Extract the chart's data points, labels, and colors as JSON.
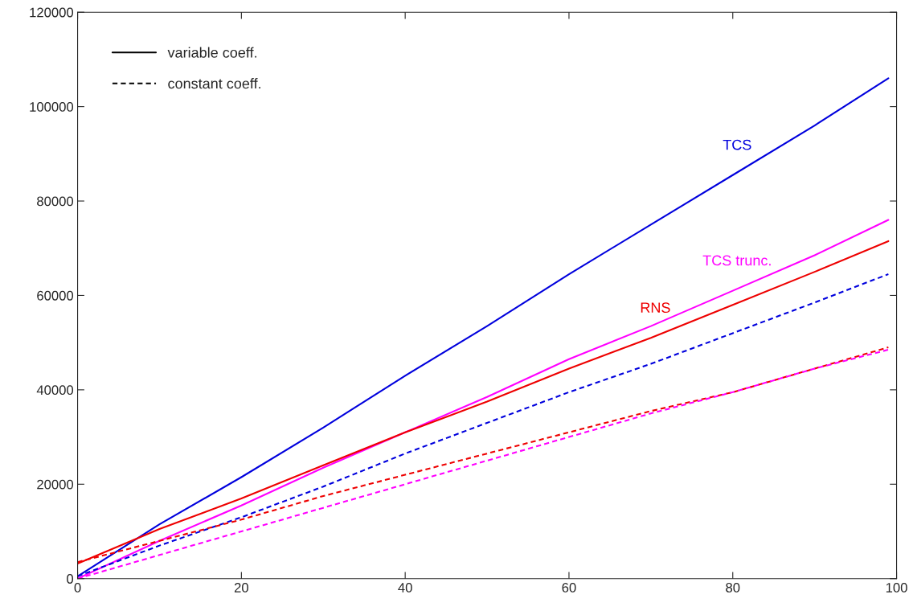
{
  "chart_data": {
    "type": "line",
    "x": [
      0,
      10,
      20,
      30,
      40,
      50,
      60,
      70,
      80,
      90,
      99
    ],
    "series": [
      {
        "name": "TCS",
        "color": "#0000dd",
        "line_style": "solid",
        "values": [
          500,
          11500,
          21500,
          32000,
          43000,
          53500,
          64500,
          75000,
          85500,
          96000,
          106000
        ]
      },
      {
        "name": "TCS trunc.",
        "color": "#ff00ff",
        "line_style": "solid",
        "values": [
          0,
          8000,
          15500,
          23500,
          31000,
          38500,
          46500,
          53500,
          61000,
          68500,
          76000
        ]
      },
      {
        "name": "RNS",
        "color": "#ee0000",
        "line_style": "solid",
        "values": [
          3200,
          10500,
          17000,
          24000,
          31000,
          37500,
          44500,
          51000,
          58000,
          65000,
          71500
        ]
      },
      {
        "color": "#0000dd",
        "line_style": "dashed",
        "values": [
          500,
          7000,
          13000,
          19500,
          26500,
          33000,
          39500,
          45500,
          52000,
          58500,
          64500
        ]
      },
      {
        "color": "#ee0000",
        "line_style": "dashed",
        "values": [
          3500,
          8000,
          12500,
          17500,
          22000,
          26500,
          31000,
          35500,
          39500,
          44500,
          49000
        ]
      },
      {
        "color": "#ff00ff",
        "line_style": "dashed",
        "values": [
          0,
          5000,
          10000,
          15000,
          20000,
          25000,
          30000,
          35000,
          39500,
          44500,
          48500
        ]
      }
    ],
    "annotations": [
      "variable coeff.",
      "constant coeff."
    ],
    "xlim": [
      0,
      100
    ],
    "xticks": [
      0,
      20,
      40,
      60,
      80,
      100
    ],
    "ylim": [
      0,
      120000
    ],
    "yticks": [
      0,
      20000,
      40000,
      60000,
      80000,
      100000,
      120000
    ]
  }
}
